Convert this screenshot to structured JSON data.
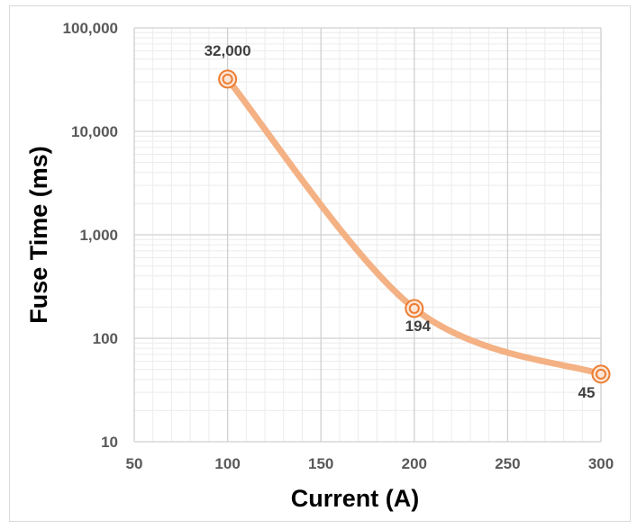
{
  "chart_data": {
    "type": "line",
    "title": "",
    "xlabel": "Current (A)",
    "ylabel": "Fuse Time (ms)",
    "x_scale": "linear",
    "y_scale": "log",
    "xlim": [
      50,
      300
    ],
    "ylim": [
      10,
      100000
    ],
    "x_ticks": [
      50,
      100,
      150,
      200,
      250,
      300
    ],
    "x_tick_labels": [
      "50",
      "100",
      "150",
      "200",
      "250",
      "300"
    ],
    "y_ticks": [
      10,
      100,
      1000,
      10000,
      100000
    ],
    "y_tick_labels": [
      "10",
      "100",
      "1,000",
      "10,000",
      "100,000"
    ],
    "grid": true,
    "legend": "none",
    "series": [
      {
        "x": [
          100,
          200,
          300
        ],
        "y": [
          32000,
          194,
          45
        ],
        "data_labels": [
          "32,000",
          "194",
          "45"
        ],
        "line_color": "#f4b183",
        "marker_color": "#ed7d31",
        "smooth": true
      }
    ]
  }
}
